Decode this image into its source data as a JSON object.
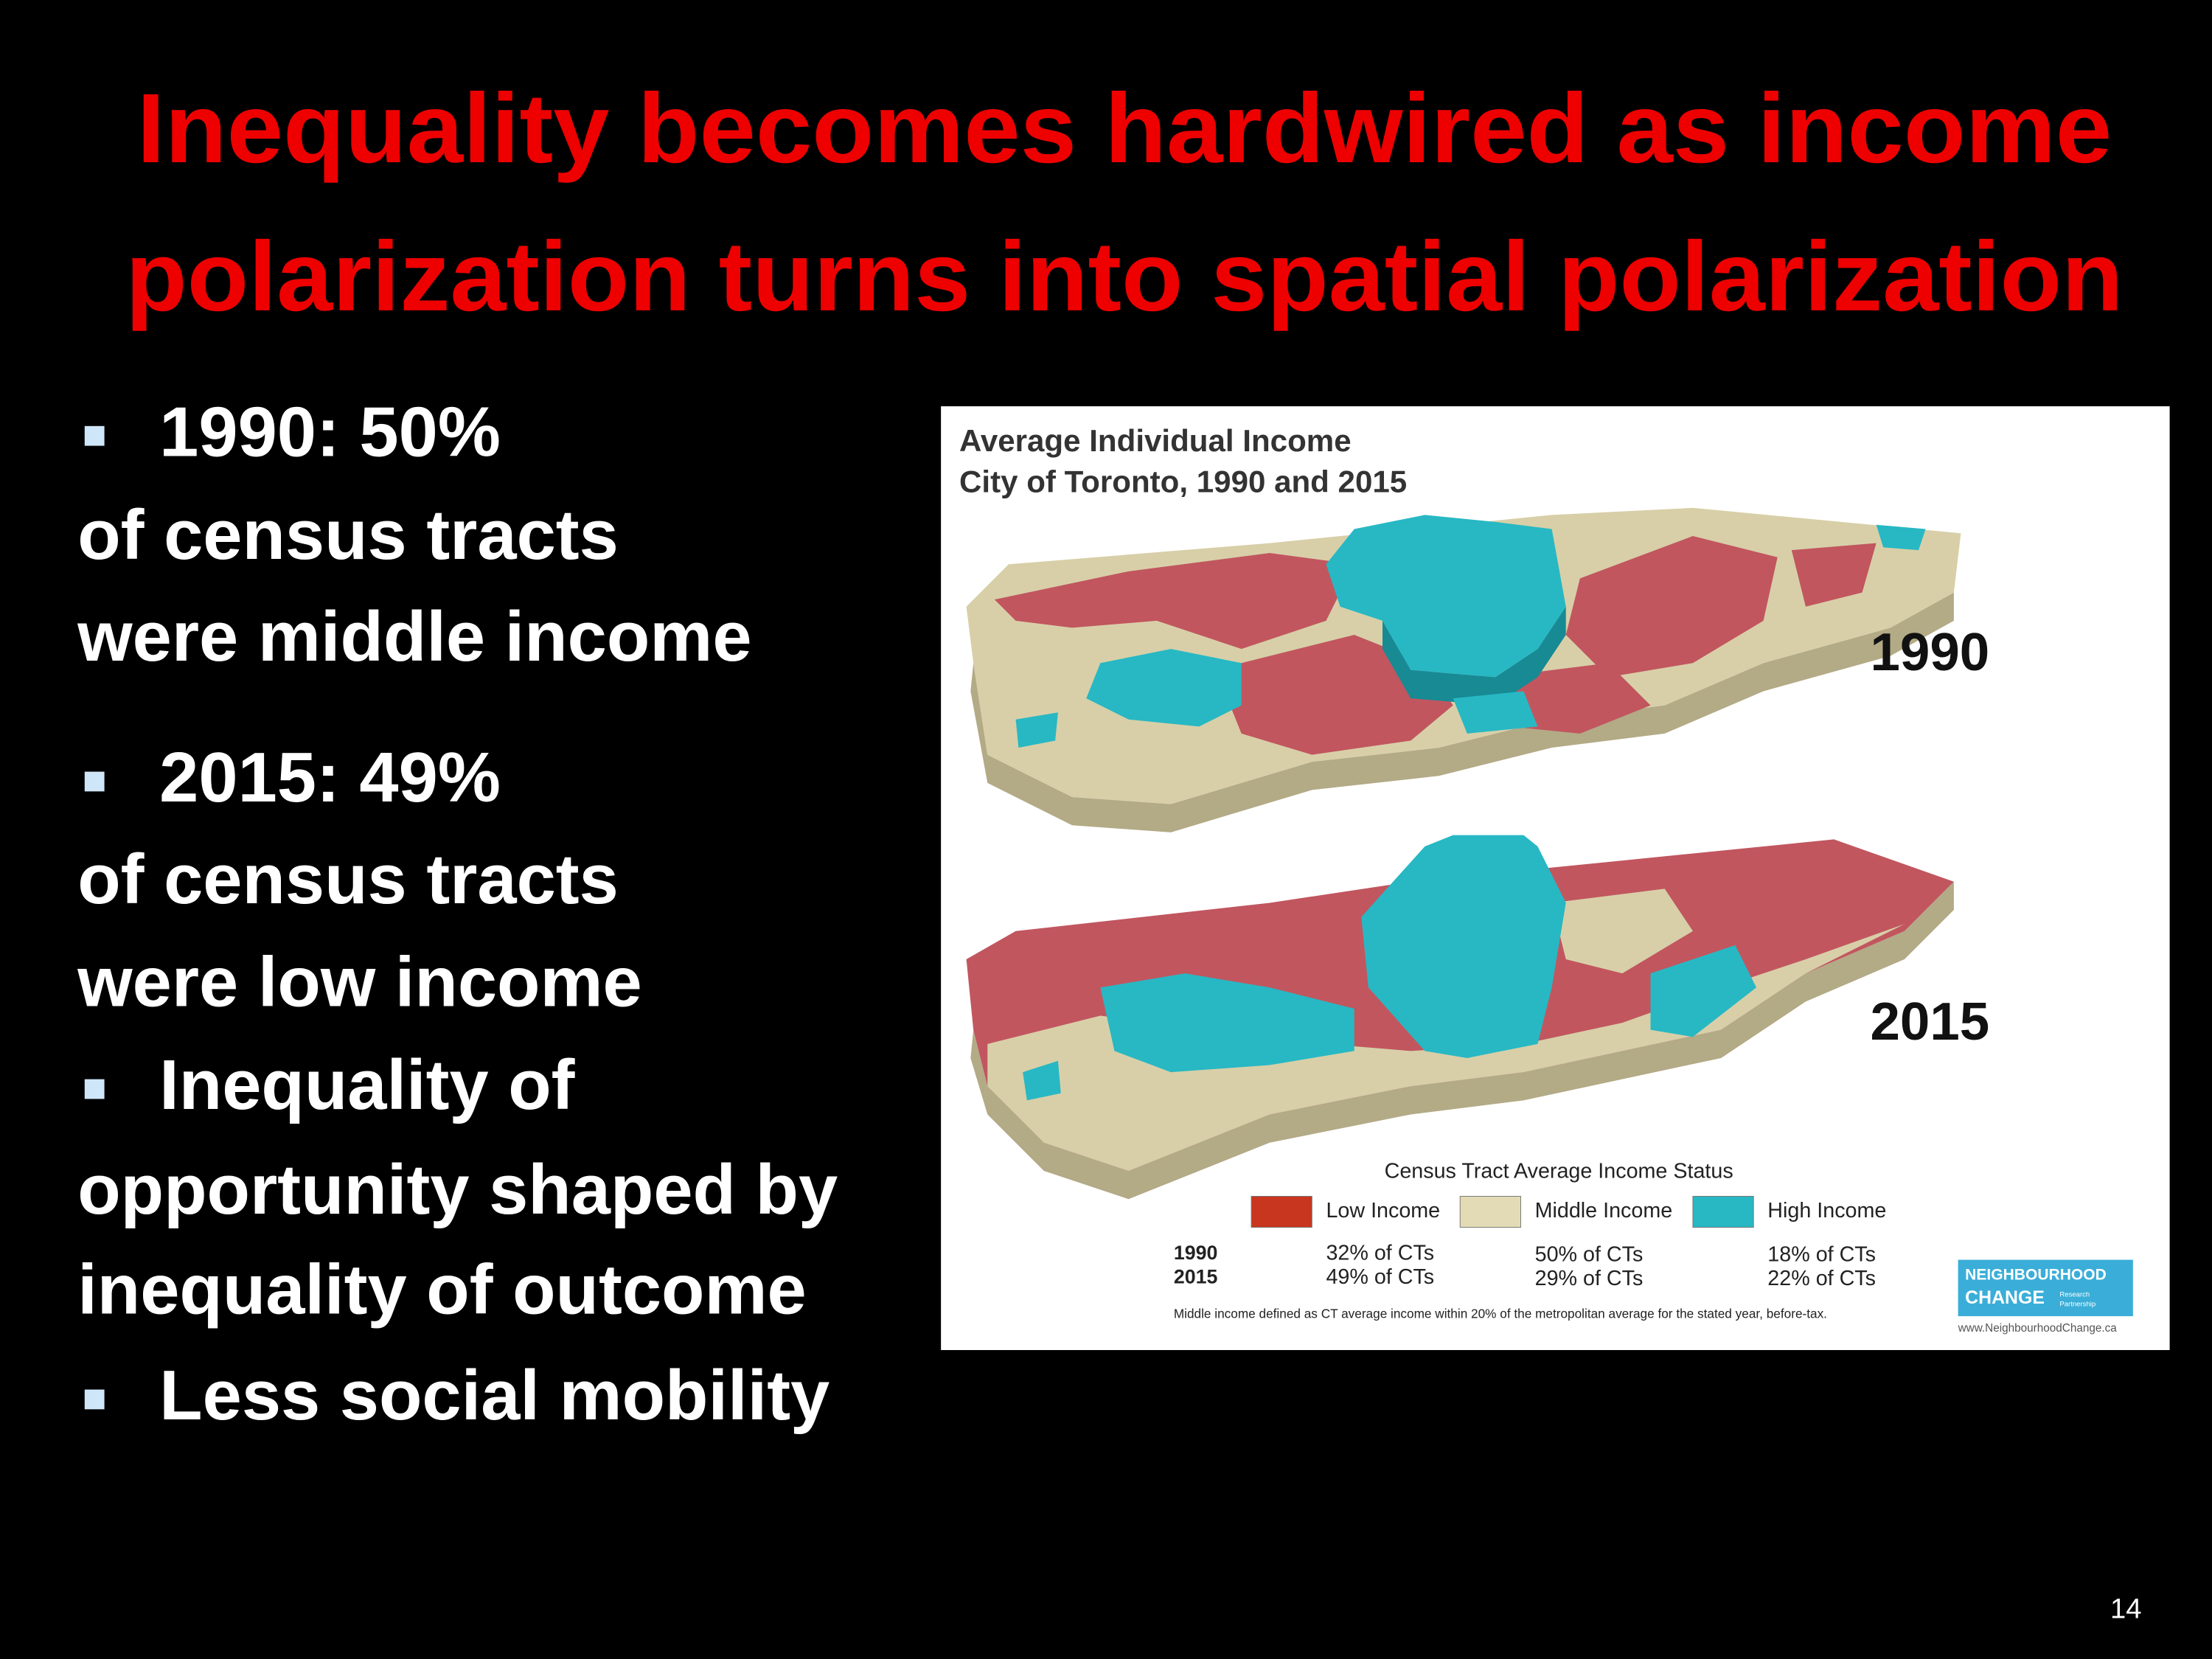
{
  "title": [
    "Inequality becomes hardwired as income",
    "polarization turns into spatial polarization"
  ],
  "bullets": [
    [
      "1990: 50%",
      "of census tracts",
      "were middle income"
    ],
    [
      "2015: 49%",
      "of census tracts",
      "were low income"
    ],
    [
      "Inequality of",
      "opportunity shaped by",
      "inequality of outcome"
    ],
    [
      "Less social mobility"
    ]
  ],
  "figure": {
    "title": [
      "Average Individual Income",
      "City of Toronto, 1990 and 2015"
    ],
    "map_labels": [
      "1990",
      "2015"
    ],
    "legend": {
      "title": "Census Tract Average Income Status",
      "items": [
        {
          "label": "Low Income",
          "shares": [
            "32% of CTs",
            "49% of CTs"
          ]
        },
        {
          "label": "Middle Income",
          "shares": [
            "50% of CTs",
            "29% of CTs"
          ]
        },
        {
          "label": "High Income",
          "shares": [
            "18% of CTs",
            "22% of CTs"
          ]
        }
      ],
      "years": [
        "1990",
        "2015"
      ],
      "note": "Middle income defined as CT average income within 20% of the metropolitan average for the stated year, before-tax."
    },
    "logo": {
      "name": [
        "NEIGHBOURHOOD",
        "CHANGE"
      ],
      "tagline": [
        "Research",
        "Partnership"
      ],
      "url": "www.NeighbourhoodChange.ca"
    }
  },
  "page_number": "14"
}
